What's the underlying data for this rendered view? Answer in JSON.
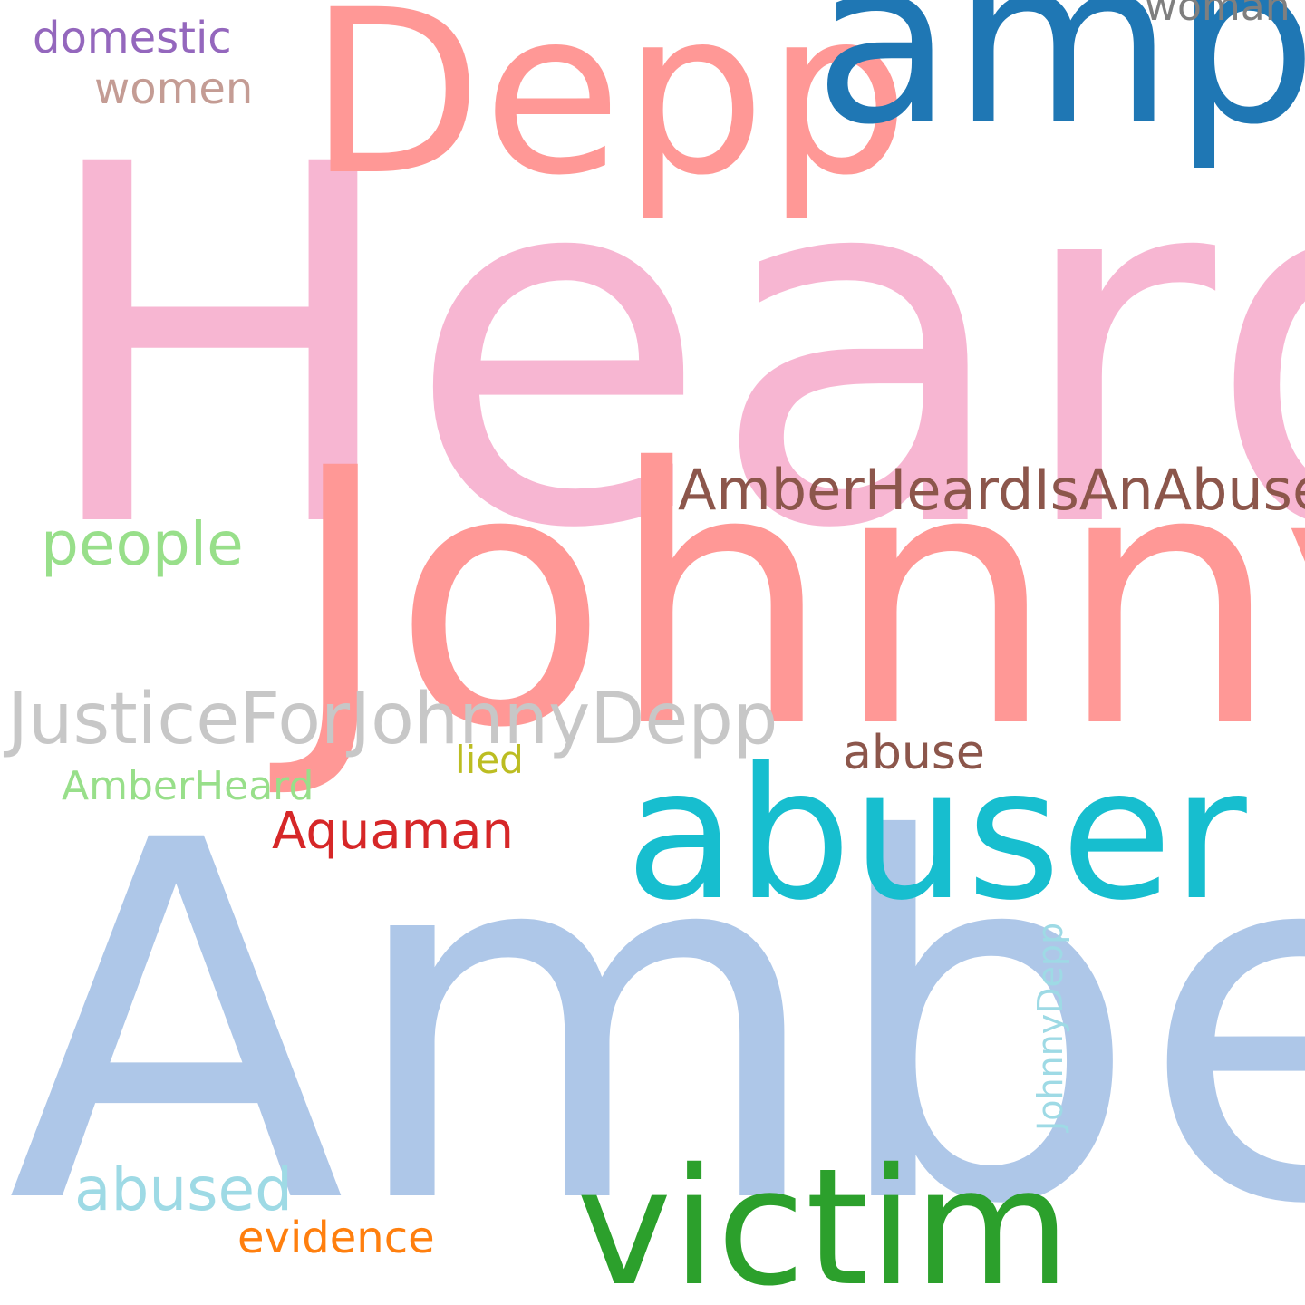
{
  "words": {
    "heard": {
      "text": "Heard",
      "color": "#f7b6d2"
    },
    "amber": {
      "text": "Amber",
      "color": "#aec7e8"
    },
    "johnny": {
      "text": "Johnny",
      "color": "#ff9896"
    },
    "depp": {
      "text": "Depp",
      "color": "#ff9896"
    },
    "amp": {
      "text": "amp",
      "color": "#1f77b4"
    },
    "abuser": {
      "text": "abuser",
      "color": "#17becf"
    },
    "victim": {
      "text": "victim",
      "color": "#2ca02c"
    },
    "ahiaa": {
      "text": "AmberHeardIsAnAbuser",
      "color": "#8c564b"
    },
    "jfjd": {
      "text": "JusticeForJohnnyDepp",
      "color": "#c7c7c7"
    },
    "people": {
      "text": "people",
      "color": "#98df8a"
    },
    "domestic": {
      "text": "domestic",
      "color": "#9467bd"
    },
    "women": {
      "text": "women",
      "color": "#c49c94"
    },
    "woman": {
      "text": "woman",
      "color": "#7f7f7f"
    },
    "abuse": {
      "text": "abuse",
      "color": "#8c564b"
    },
    "lied": {
      "text": "lied",
      "color": "#bcbd22"
    },
    "ah": {
      "text": "AmberHeard",
      "color": "#98df8a"
    },
    "aquaman": {
      "text": "Aquaman",
      "color": "#d62728"
    },
    "abused": {
      "text": "abused",
      "color": "#9edae5"
    },
    "evidence": {
      "text": "evidence",
      "color": "#ff7f0e"
    },
    "jd": {
      "text": "JohnnyDepp",
      "color": "#9edae5"
    }
  }
}
